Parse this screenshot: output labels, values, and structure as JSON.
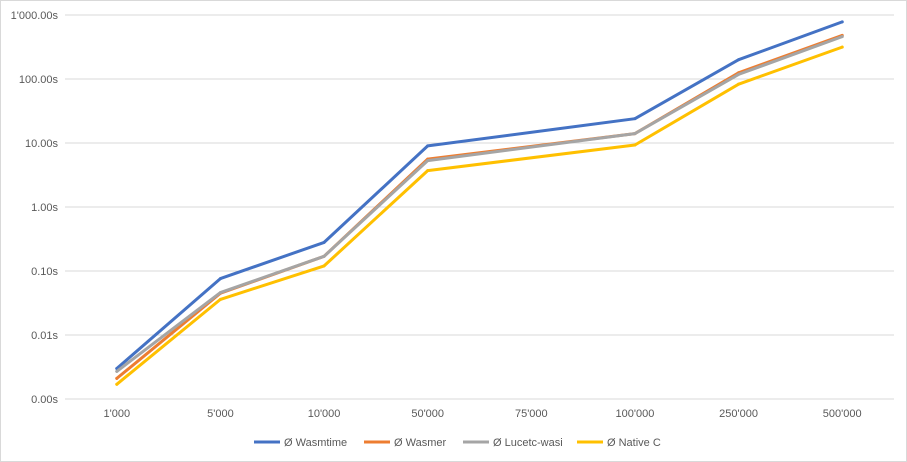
{
  "chart_data": {
    "type": "line",
    "title": "",
    "xlabel": "",
    "ylabel": "",
    "y_scale": "log",
    "ylim": [
      0.001,
      1000
    ],
    "grid": "horizontal",
    "legend_position": "bottom",
    "categories": [
      "1'000",
      "5'000",
      "10'000",
      "50'000",
      "75'000",
      "100'000",
      "250'000",
      "500'000"
    ],
    "y_ticks": [
      {
        "value": 0.001,
        "label": "0.00s"
      },
      {
        "value": 0.01,
        "label": "0.01s"
      },
      {
        "value": 0.1,
        "label": "0.10s"
      },
      {
        "value": 1,
        "label": "1.00s"
      },
      {
        "value": 10,
        "label": "10.00s"
      },
      {
        "value": 100,
        "label": "100.00s"
      },
      {
        "value": 1000,
        "label": "1'000.00s"
      }
    ],
    "series": [
      {
        "name": "Ø Wasmtime",
        "color": "#4472c4",
        "points": [
          [
            0,
            0.003
          ],
          [
            1,
            0.076
          ],
          [
            2,
            0.28
          ],
          [
            3,
            9.0
          ],
          [
            5,
            24
          ],
          [
            6,
            200
          ],
          [
            7,
            780
          ]
        ]
      },
      {
        "name": "Ø Wasmer",
        "color": "#ed7d31",
        "points": [
          [
            0,
            0.0021
          ],
          [
            1,
            0.045
          ],
          [
            2,
            0.17
          ],
          [
            3,
            5.6
          ],
          [
            5,
            14
          ],
          [
            6,
            125
          ],
          [
            7,
            480
          ]
        ]
      },
      {
        "name": "Ø Lucetc-wasi",
        "color": "#a5a5a5",
        "points": [
          [
            0,
            0.0027
          ],
          [
            1,
            0.046
          ],
          [
            2,
            0.17
          ],
          [
            3,
            5.3
          ],
          [
            5,
            14
          ],
          [
            6,
            118
          ],
          [
            7,
            460
          ]
        ]
      },
      {
        "name": "Ø Native C",
        "color": "#ffc000",
        "points": [
          [
            0,
            0.0017
          ],
          [
            1,
            0.036
          ],
          [
            2,
            0.12
          ],
          [
            3,
            3.7
          ],
          [
            5,
            9.3
          ],
          [
            6,
            83
          ],
          [
            7,
            315
          ]
        ]
      }
    ]
  }
}
